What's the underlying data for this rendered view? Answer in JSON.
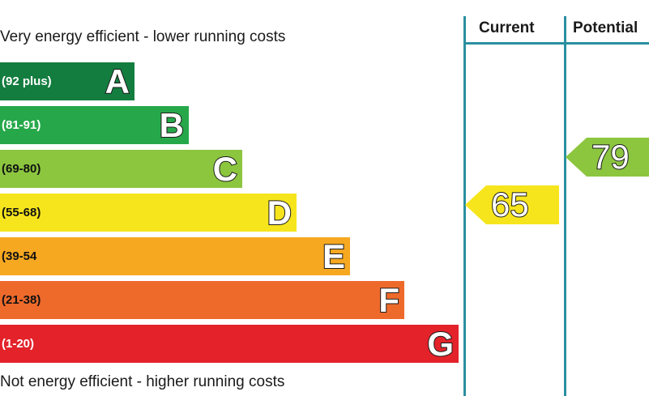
{
  "header": {
    "top_caption": "Very energy efficient - lower running costs",
    "bottom_caption": "Not energy efficient - higher running costs",
    "current_label": "Current",
    "potential_label": "Potential"
  },
  "bands": [
    {
      "letter": "A",
      "range": "(92 plus)",
      "color": "#137d3f"
    },
    {
      "letter": "B",
      "range": "(81-91)",
      "color": "#26a84a"
    },
    {
      "letter": "C",
      "range": "(69-80)",
      "color": "#8cc63f"
    },
    {
      "letter": "D",
      "range": "(55-68)",
      "color": "#f6e51c"
    },
    {
      "letter": "E",
      "range": "(39-54",
      "color": "#f6a821"
    },
    {
      "letter": "F",
      "range": "(21-38)",
      "color": "#ee6a2b"
    },
    {
      "letter": "G",
      "range": "(1-20)",
      "color": "#e3222a"
    }
  ],
  "ratings": {
    "current": {
      "value": "65",
      "band": "D",
      "color": "#f6e51c"
    },
    "potential": {
      "value": "79",
      "band": "C",
      "color": "#8cc63f"
    }
  }
}
